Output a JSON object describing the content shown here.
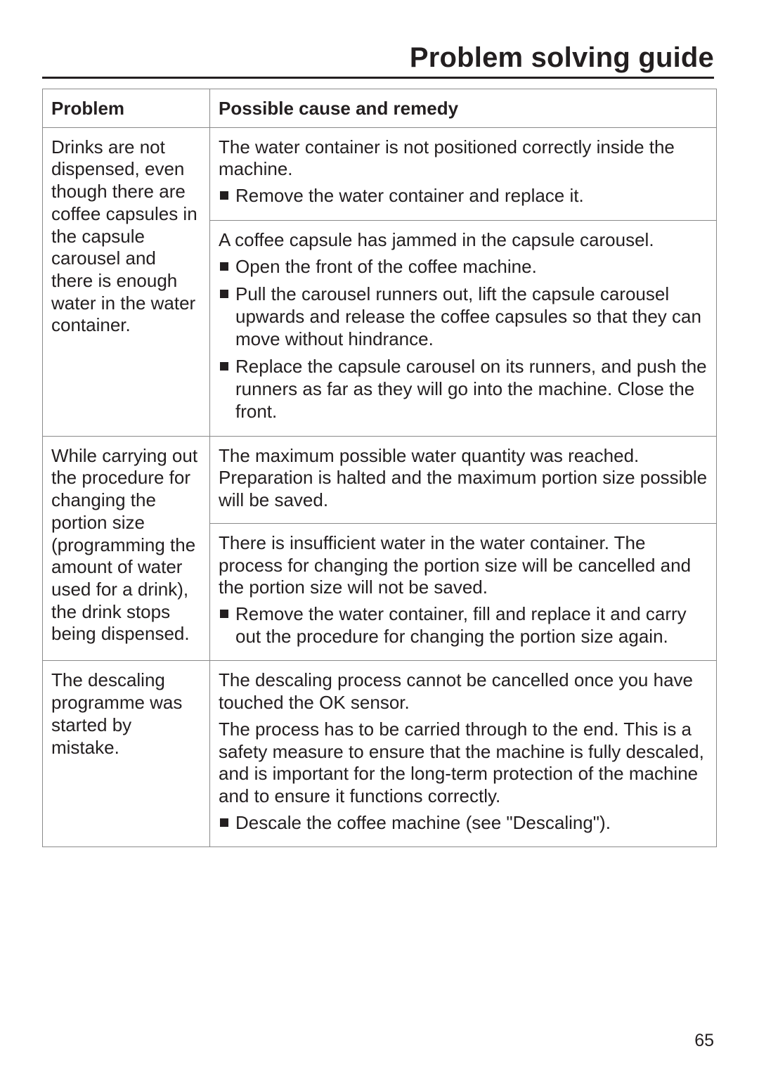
{
  "page": {
    "title": "Problem solving guide",
    "page_number": "65",
    "columns": {
      "problem": "Problem",
      "remedy": "Possible cause and remedy"
    },
    "table": {
      "border_color": "#8a8a8a",
      "text_color": "#231f20",
      "font_size_pt": 19,
      "bullet_shape": "square",
      "bullet_color": "#231f20"
    },
    "rows": [
      {
        "problem": "Drinks are not dispensed, even though there are coffee capsules in the capsule carousel and there is enough water in the water container.",
        "remedies": [
          {
            "intro": [
              "The water container is not positioned correctly inside the machine."
            ],
            "bullets": [
              "Remove the water container and replace it."
            ]
          },
          {
            "intro": [
              "A coffee capsule has jammed in the capsule carousel."
            ],
            "bullets": [
              "Open the front of the coffee machine.",
              "Pull the carousel runners out, lift the capsule carousel upwards and release the coffee capsules so that they can move without hindrance.",
              "Replace the capsule carousel on its runners, and push the runners as far as they will go into the machine. Close the front."
            ]
          }
        ]
      },
      {
        "problem": "While carrying out the procedure for changing the portion size (programming the amount of water used for a drink), the drink stops being dispensed.",
        "remedies": [
          {
            "intro": [
              "The maximum possible water quantity was reached. Preparation is halted and the maximum portion size possible will be saved."
            ],
            "bullets": []
          },
          {
            "intro": [
              "There is insufficient water in the water container. The process for changing the portion size will be cancelled and the portion size will not be saved."
            ],
            "bullets": [
              "Remove the water container, fill and replace it and carry out the procedure for changing the portion size again."
            ]
          }
        ]
      },
      {
        "problem": "The descaling programme was started by mistake.",
        "remedies": [
          {
            "intro": [
              "The descaling process cannot be cancelled once you have touched the OK sensor.",
              "The process has to be carried through to the end. This is a safety measure to ensure that the machine is fully descaled, and is important for the long-term protection of the machine and to ensure it functions correctly."
            ],
            "bullets": [
              "Descale the coffee machine (see \"Descaling\")."
            ]
          }
        ]
      }
    ]
  }
}
